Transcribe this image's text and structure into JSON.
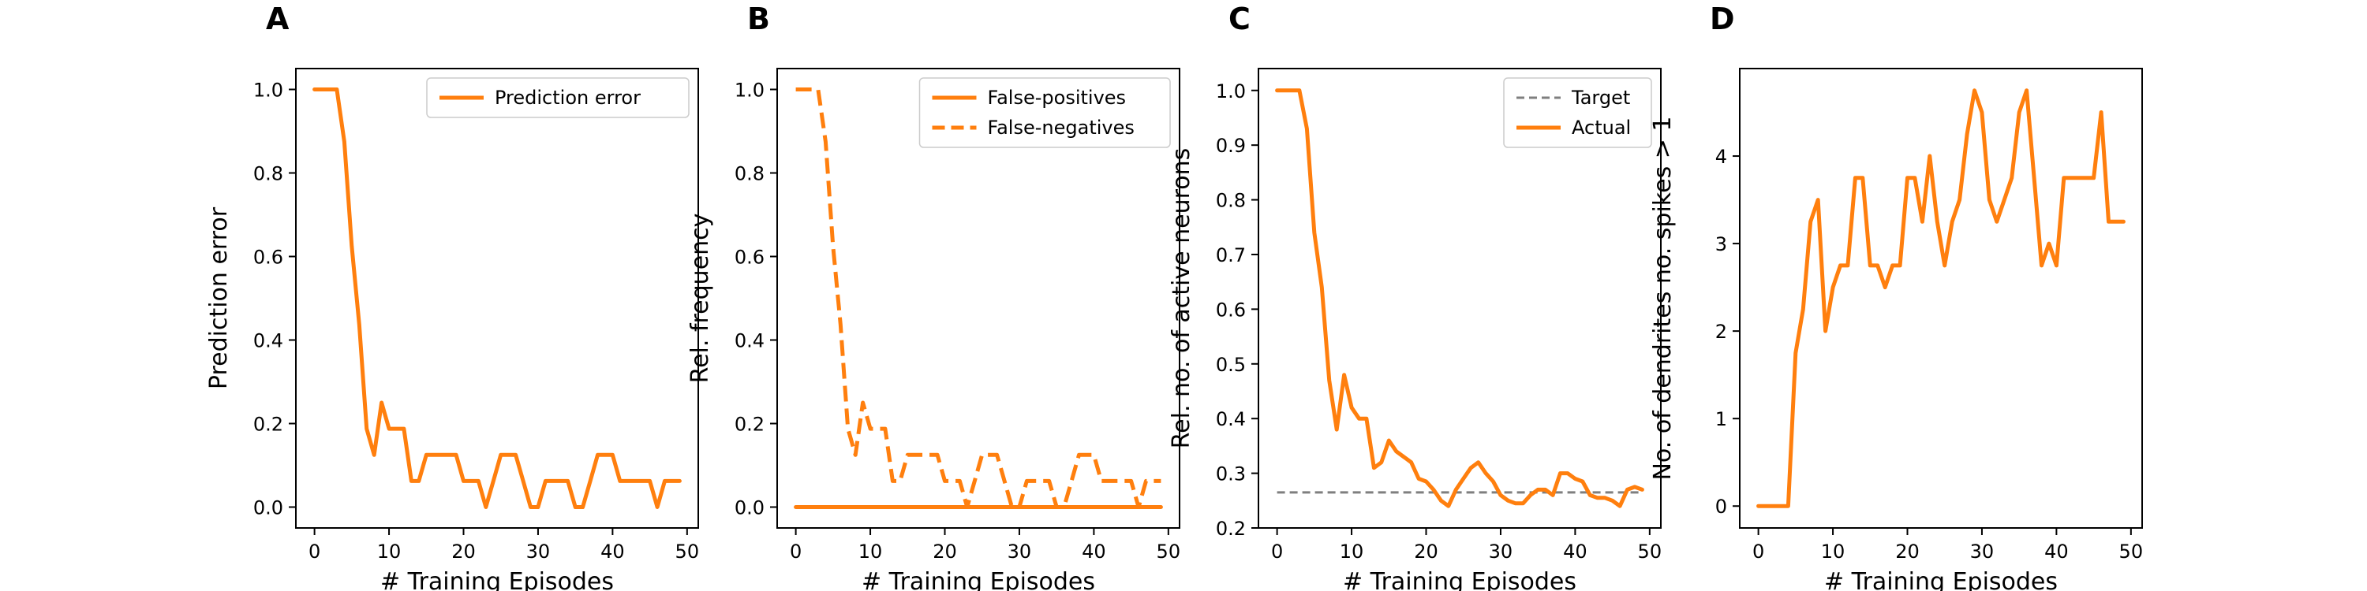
{
  "chart_data": [
    {
      "panel": "A",
      "type": "line",
      "xlabel": "# Training Episodes",
      "ylabel": "Prediction error",
      "xlim": [
        -2.5,
        51.5
      ],
      "ylim": [
        -0.05,
        1.05
      ],
      "xticks": [
        0,
        10,
        20,
        30,
        40,
        50
      ],
      "yticks": [
        0.0,
        0.2,
        0.4,
        0.6,
        0.8,
        1.0
      ],
      "ytick_labels": [
        "0.0",
        "0.2",
        "0.4",
        "0.6",
        "0.8",
        "1.0"
      ],
      "legend": "top-right",
      "series": [
        {
          "name": "Prediction error",
          "style": "solid",
          "color": "#ff7f0e",
          "x": [
            0,
            1,
            2,
            3,
            4,
            5,
            6,
            7,
            8,
            9,
            10,
            11,
            12,
            13,
            14,
            15,
            16,
            17,
            18,
            19,
            20,
            21,
            22,
            23,
            24,
            25,
            26,
            27,
            28,
            29,
            30,
            31,
            32,
            33,
            34,
            35,
            36,
            37,
            38,
            39,
            40,
            41,
            42,
            43,
            44,
            45,
            46,
            47,
            48,
            49
          ],
          "y": [
            1.0,
            1.0,
            1.0,
            1.0,
            0.875,
            0.625,
            0.4375,
            0.1875,
            0.125,
            0.25,
            0.1875,
            0.1875,
            0.1875,
            0.0625,
            0.0625,
            0.125,
            0.125,
            0.125,
            0.125,
            0.125,
            0.0625,
            0.0625,
            0.0625,
            0.0,
            0.0625,
            0.125,
            0.125,
            0.125,
            0.0625,
            0.0,
            0.0,
            0.0625,
            0.0625,
            0.0625,
            0.0625,
            0.0,
            0.0,
            0.0625,
            0.125,
            0.125,
            0.125,
            0.0625,
            0.0625,
            0.0625,
            0.0625,
            0.0625,
            0.0,
            0.0625,
            0.0625,
            0.0625
          ]
        }
      ]
    },
    {
      "panel": "B",
      "type": "line",
      "xlabel": "# Training Episodes",
      "ylabel": "Rel. frequency",
      "xlim": [
        -2.5,
        51.5
      ],
      "ylim": [
        -0.05,
        1.05
      ],
      "xticks": [
        0,
        10,
        20,
        30,
        40,
        50
      ],
      "yticks": [
        0.0,
        0.2,
        0.4,
        0.6,
        0.8,
        1.0
      ],
      "ytick_labels": [
        "0.0",
        "0.2",
        "0.4",
        "0.6",
        "0.8",
        "1.0"
      ],
      "legend": "top-right",
      "series": [
        {
          "name": "False-positives",
          "style": "solid",
          "color": "#ff7f0e",
          "x": [
            0,
            1,
            2,
            3,
            4,
            5,
            6,
            7,
            8,
            9,
            10,
            11,
            12,
            13,
            14,
            15,
            16,
            17,
            18,
            19,
            20,
            21,
            22,
            23,
            24,
            25,
            26,
            27,
            28,
            29,
            30,
            31,
            32,
            33,
            34,
            35,
            36,
            37,
            38,
            39,
            40,
            41,
            42,
            43,
            44,
            45,
            46,
            47,
            48,
            49
          ],
          "y": [
            0,
            0,
            0,
            0,
            0,
            0,
            0,
            0,
            0,
            0,
            0,
            0,
            0,
            0,
            0,
            0,
            0,
            0,
            0,
            0,
            0,
            0,
            0,
            0,
            0,
            0,
            0,
            0,
            0,
            0,
            0,
            0,
            0,
            0,
            0,
            0,
            0,
            0,
            0,
            0,
            0,
            0,
            0,
            0,
            0,
            0,
            0,
            0,
            0,
            0
          ]
        },
        {
          "name": "False-negatives",
          "style": "dashed",
          "color": "#ff7f0e",
          "x": [
            0,
            1,
            2,
            3,
            4,
            5,
            6,
            7,
            8,
            9,
            10,
            11,
            12,
            13,
            14,
            15,
            16,
            17,
            18,
            19,
            20,
            21,
            22,
            23,
            24,
            25,
            26,
            27,
            28,
            29,
            30,
            31,
            32,
            33,
            34,
            35,
            36,
            37,
            38,
            39,
            40,
            41,
            42,
            43,
            44,
            45,
            46,
            47,
            48,
            49
          ],
          "y": [
            1.0,
            1.0,
            1.0,
            1.0,
            0.875,
            0.625,
            0.4375,
            0.1875,
            0.125,
            0.25,
            0.1875,
            0.1875,
            0.1875,
            0.0625,
            0.0625,
            0.125,
            0.125,
            0.125,
            0.125,
            0.125,
            0.0625,
            0.0625,
            0.0625,
            0.0,
            0.0625,
            0.125,
            0.125,
            0.125,
            0.0625,
            0.0,
            0.0,
            0.0625,
            0.0625,
            0.0625,
            0.0625,
            0.0,
            0.0,
            0.0625,
            0.125,
            0.125,
            0.125,
            0.0625,
            0.0625,
            0.0625,
            0.0625,
            0.0625,
            0.0,
            0.0625,
            0.0625,
            0.0625
          ]
        }
      ]
    },
    {
      "panel": "C",
      "type": "line",
      "xlabel": "# Training Episodes",
      "ylabel": "Rel. no. of active neurons",
      "xlim": [
        -2.5,
        51.5
      ],
      "ylim": [
        0.2,
        1.04
      ],
      "xticks": [
        0,
        10,
        20,
        30,
        40,
        50
      ],
      "yticks": [
        0.2,
        0.3,
        0.4,
        0.5,
        0.6,
        0.7,
        0.8,
        0.9,
        1.0
      ],
      "ytick_labels": [
        "0.2",
        "0.3",
        "0.4",
        "0.5",
        "0.6",
        "0.7",
        "0.8",
        "0.9",
        "1.0"
      ],
      "legend": "top-right",
      "series": [
        {
          "name": "Target",
          "style": "dashed",
          "color": "#7f7f7f",
          "x": [
            0,
            49
          ],
          "y": [
            0.265,
            0.265
          ]
        },
        {
          "name": "Actual",
          "style": "solid",
          "color": "#ff7f0e",
          "x": [
            0,
            1,
            2,
            3,
            4,
            5,
            6,
            7,
            8,
            9,
            10,
            11,
            12,
            13,
            14,
            15,
            16,
            17,
            18,
            19,
            20,
            21,
            22,
            23,
            24,
            25,
            26,
            27,
            28,
            29,
            30,
            31,
            32,
            33,
            34,
            35,
            36,
            37,
            38,
            39,
            40,
            41,
            42,
            43,
            44,
            45,
            46,
            47,
            48,
            49
          ],
          "y": [
            1.0,
            1.0,
            1.0,
            1.0,
            0.93,
            0.74,
            0.64,
            0.47,
            0.38,
            0.48,
            0.42,
            0.4,
            0.4,
            0.31,
            0.32,
            0.36,
            0.34,
            0.33,
            0.32,
            0.29,
            0.285,
            0.27,
            0.25,
            0.24,
            0.27,
            0.29,
            0.31,
            0.32,
            0.3,
            0.285,
            0.26,
            0.25,
            0.245,
            0.245,
            0.26,
            0.27,
            0.27,
            0.26,
            0.3,
            0.3,
            0.29,
            0.285,
            0.26,
            0.255,
            0.255,
            0.25,
            0.24,
            0.27,
            0.275,
            0.27
          ]
        }
      ]
    },
    {
      "panel": "D",
      "type": "line",
      "xlabel": "# Training Episodes",
      "ylabel": "No. of dendrites no. spikes > 1",
      "xlim": [
        -2.5,
        51.5
      ],
      "ylim": [
        -0.25,
        5.0
      ],
      "xticks": [
        0,
        10,
        20,
        30,
        40,
        50
      ],
      "yticks": [
        0,
        1,
        2,
        3,
        4
      ],
      "ytick_labels": [
        "0",
        "1",
        "2",
        "3",
        "4"
      ],
      "legend": "none",
      "series": [
        {
          "name": "",
          "style": "solid",
          "color": "#ff7f0e",
          "x": [
            0,
            1,
            2,
            3,
            4,
            5,
            6,
            7,
            8,
            9,
            10,
            11,
            12,
            13,
            14,
            15,
            16,
            17,
            18,
            19,
            20,
            21,
            22,
            23,
            24,
            25,
            26,
            27,
            28,
            29,
            30,
            31,
            32,
            33,
            34,
            35,
            36,
            37,
            38,
            39,
            40,
            41,
            42,
            43,
            44,
            45,
            46,
            47,
            48,
            49
          ],
          "y": [
            0,
            0,
            0,
            0,
            0,
            1.75,
            2.25,
            3.25,
            3.5,
            2.0,
            2.5,
            2.75,
            2.75,
            3.75,
            3.75,
            2.75,
            2.75,
            2.5,
            2.75,
            2.75,
            3.75,
            3.75,
            3.25,
            4.0,
            3.25,
            2.75,
            3.25,
            3.5,
            4.25,
            4.75,
            4.5,
            3.5,
            3.25,
            3.5,
            3.75,
            4.5,
            4.75,
            3.75,
            2.75,
            3.0,
            2.75,
            3.75,
            3.75,
            3.75,
            3.75,
            3.75,
            4.5,
            3.25,
            3.25,
            3.25
          ]
        }
      ]
    }
  ]
}
